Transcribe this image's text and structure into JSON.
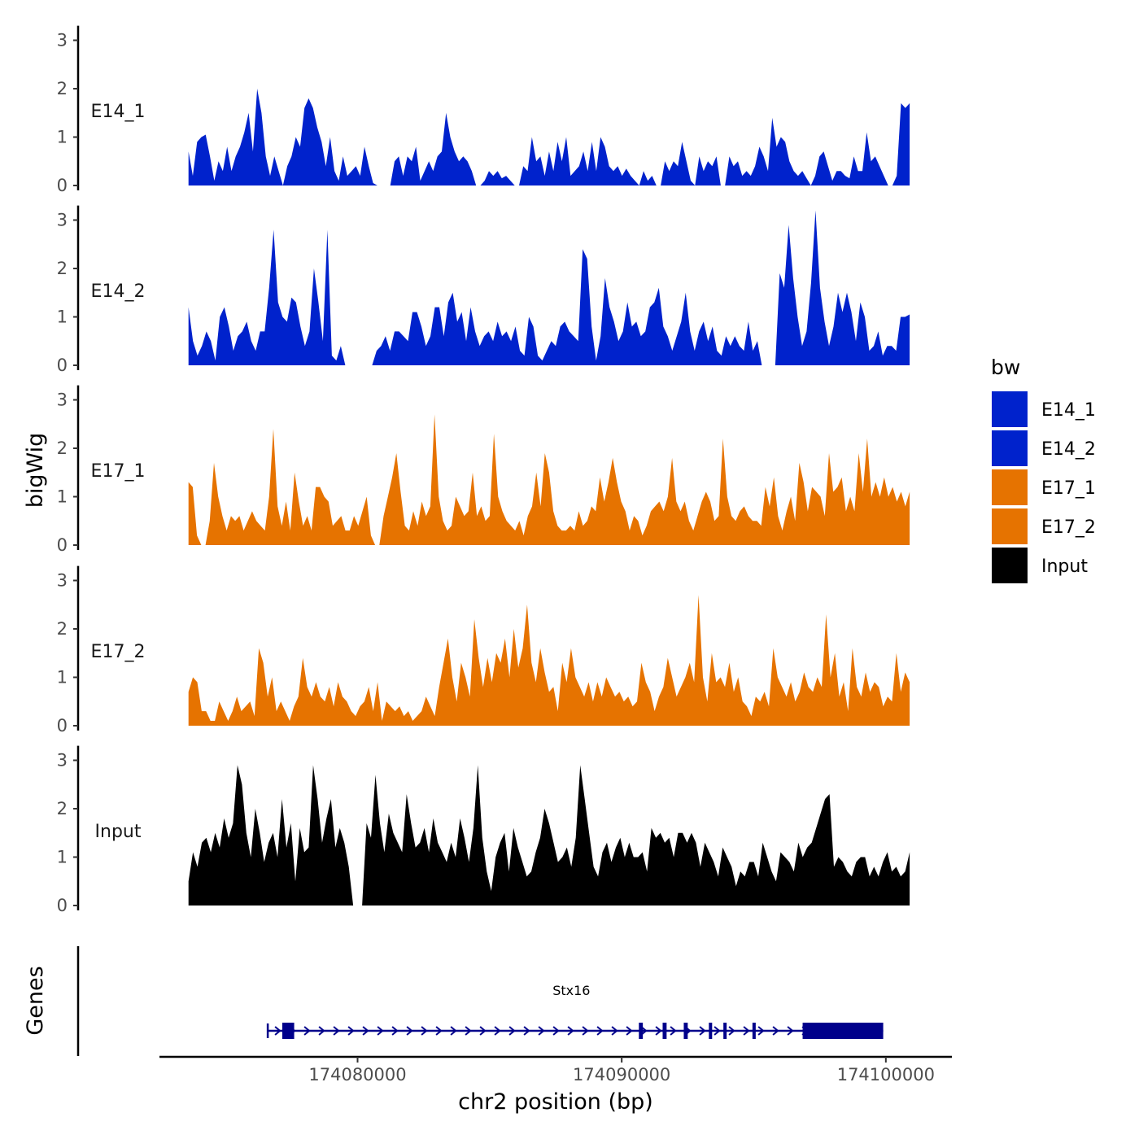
{
  "chart_data": {
    "type": "area",
    "title": "",
    "ylabel": "bigWig",
    "xlabel": "chr2 position (bp)",
    "genes_label": "Genes",
    "xlim": [
      174072500,
      174102500
    ],
    "ylim": [
      0,
      3.2
    ],
    "y_ticks": [
      "0",
      "1",
      "2",
      "3"
    ],
    "x_ticks": [
      {
        "value": 174080000,
        "label": "174080000"
      },
      {
        "value": 174090000,
        "label": "174090000"
      },
      {
        "value": 174100000,
        "label": "174100000"
      }
    ],
    "legend": {
      "title": "bw",
      "entries": [
        {
          "label": "E14_1",
          "color": "#0022CC"
        },
        {
          "label": "E14_2",
          "color": "#0022CC"
        },
        {
          "label": "E17_1",
          "color": "#E67300"
        },
        {
          "label": "E17_2",
          "color": "#E67300"
        },
        {
          "label": "Input",
          "color": "#000000"
        }
      ]
    },
    "x_range_signal": [
      174073600,
      174100900
    ],
    "tracks": [
      {
        "name": "E14_1",
        "color": "#0022CC",
        "values": [
          0.7,
          0.2,
          0.9,
          1.0,
          1.05,
          0.6,
          0.1,
          0.5,
          0.3,
          0.8,
          0.3,
          0.6,
          0.8,
          1.1,
          1.5,
          0.7,
          2.0,
          1.5,
          0.6,
          0.2,
          0.6,
          0.3,
          0,
          0.4,
          0.6,
          1.0,
          0.8,
          1.6,
          1.8,
          1.6,
          1.2,
          0.9,
          0.4,
          1.0,
          0.3,
          0.1,
          0.6,
          0.2,
          0.3,
          0.4,
          0.2,
          0.8,
          0.4,
          0.05,
          0,
          0,
          0,
          0,
          0.5,
          0.6,
          0.2,
          0.6,
          0.5,
          0.8,
          0.1,
          0.3,
          0.5,
          0.3,
          0.6,
          0.7,
          1.5,
          1.0,
          0.7,
          0.5,
          0.6,
          0.5,
          0.3,
          0,
          0,
          0.1,
          0.3,
          0.2,
          0.3,
          0.15,
          0.2,
          0.1,
          0,
          0,
          0.4,
          0.3,
          1.0,
          0.5,
          0.6,
          0.2,
          0.7,
          0.3,
          0.9,
          0.5,
          1.0,
          0.2,
          0.3,
          0.4,
          0.7,
          0.3,
          0.9,
          0.3,
          1.0,
          0.8,
          0.4,
          0.3,
          0.4,
          0.2,
          0.35,
          0.2,
          0.1,
          0,
          0.3,
          0.1,
          0.2,
          0,
          0,
          0.5,
          0.3,
          0.5,
          0.4,
          0.9,
          0.5,
          0.1,
          0,
          0.6,
          0.3,
          0.5,
          0.4,
          0.6,
          0,
          0,
          0.6,
          0.4,
          0.5,
          0.2,
          0.3,
          0.2,
          0.4,
          0.8,
          0.6,
          0.3,
          1.4,
          0.8,
          1.0,
          0.9,
          0.5,
          0.3,
          0.2,
          0.3,
          0.15,
          0,
          0.2,
          0.6,
          0.7,
          0.4,
          0.1,
          0.3,
          0.3,
          0.2,
          0.15,
          0.6,
          0.3,
          0.3,
          1.1,
          0.5,
          0.6,
          0.4,
          0.2,
          0,
          0,
          0.2,
          1.7,
          1.6,
          1.7
        ]
      },
      {
        "name": "E14_2",
        "color": "#0022CC",
        "values": [
          1.2,
          0.5,
          0.2,
          0.4,
          0.7,
          0.5,
          0.1,
          1.0,
          1.2,
          0.8,
          0.3,
          0.6,
          0.7,
          0.9,
          0.5,
          0.3,
          0.7,
          0.7,
          1.6,
          2.8,
          1.3,
          1.0,
          0.9,
          1.4,
          1.3,
          0.8,
          0.4,
          0.7,
          2.0,
          1.3,
          0.5,
          2.8,
          0.2,
          0.1,
          0.4,
          0,
          0,
          0,
          0,
          0,
          0,
          0,
          0.3,
          0.4,
          0.6,
          0.3,
          0.7,
          0.7,
          0.6,
          0.5,
          1.1,
          1.1,
          0.8,
          0.4,
          0.6,
          1.2,
          1.2,
          0.6,
          1.3,
          1.5,
          0.9,
          1.1,
          0.5,
          1.2,
          0.7,
          0.4,
          0.6,
          0.7,
          0.5,
          0.9,
          0.6,
          0.7,
          0.5,
          0.8,
          0.3,
          0.2,
          1.0,
          0.8,
          0.2,
          0.1,
          0.3,
          0.5,
          0.4,
          0.8,
          0.9,
          0.7,
          0.6,
          0.5,
          2.4,
          2.2,
          0.8,
          0.1,
          0.6,
          1.8,
          1.2,
          0.9,
          0.5,
          0.7,
          1.3,
          0.8,
          0.9,
          0.6,
          0.7,
          1.2,
          1.3,
          1.6,
          0.8,
          0.6,
          0.3,
          0.6,
          0.9,
          1.5,
          0.7,
          0.3,
          0.7,
          0.9,
          0.5,
          0.8,
          0.3,
          0.2,
          0.6,
          0.4,
          0.6,
          0.4,
          0.3,
          0.9,
          0.3,
          0.5,
          0,
          0,
          0,
          0,
          1.9,
          1.6,
          2.9,
          1.8,
          1.0,
          0.4,
          0.7,
          1.7,
          3.2,
          1.6,
          0.9,
          0.4,
          0.8,
          1.5,
          1.1,
          1.5,
          1.1,
          0.5,
          1.3,
          1.0,
          0.3,
          0.4,
          0.7,
          0.2,
          0.4,
          0.4,
          0.3,
          1.0,
          1.0,
          1.05
        ]
      },
      {
        "name": "E17_1",
        "color": "#E67300",
        "values": [
          1.3,
          1.2,
          0.2,
          0,
          0,
          0.5,
          1.7,
          1.0,
          0.6,
          0.3,
          0.6,
          0.5,
          0.6,
          0.3,
          0.5,
          0.7,
          0.5,
          0.4,
          0.3,
          1.0,
          2.4,
          0.8,
          0.4,
          0.9,
          0.3,
          1.5,
          0.9,
          0.4,
          0.6,
          0.3,
          1.2,
          1.2,
          1.0,
          0.9,
          0.4,
          0.5,
          0.6,
          0.3,
          0.3,
          0.6,
          0.4,
          0.7,
          1.0,
          0.2,
          0,
          0,
          0.6,
          1.0,
          1.4,
          1.9,
          1.1,
          0.4,
          0.3,
          0.7,
          0.4,
          0.9,
          0.6,
          0.8,
          2.7,
          1.0,
          0.5,
          0.3,
          0.4,
          1.0,
          0.8,
          0.6,
          0.7,
          1.5,
          0.6,
          0.8,
          0.5,
          0.6,
          2.3,
          1.0,
          0.7,
          0.5,
          0.4,
          0.3,
          0.5,
          0.2,
          0.6,
          0.8,
          1.5,
          0.8,
          1.9,
          1.5,
          0.7,
          0.4,
          0.3,
          0.3,
          0.4,
          0.3,
          0.7,
          0.4,
          0.5,
          0.8,
          0.7,
          1.4,
          0.9,
          1.3,
          1.8,
          1.3,
          0.9,
          0.7,
          0.3,
          0.6,
          0.5,
          0.2,
          0.4,
          0.7,
          0.8,
          0.9,
          0.7,
          1.0,
          1.8,
          0.9,
          0.7,
          0.9,
          0.5,
          0.3,
          0.6,
          0.9,
          1.1,
          0.9,
          0.5,
          0.6,
          2.2,
          1.0,
          0.6,
          0.5,
          0.7,
          0.8,
          0.6,
          0.5,
          0.5,
          0.4,
          1.2,
          0.8,
          1.4,
          0.6,
          0.3,
          0.7,
          1.0,
          0.5,
          1.7,
          1.3,
          0.7,
          1.2,
          1.1,
          1.0,
          0.6,
          1.9,
          1.1,
          1.2,
          1.4,
          0.7,
          1.0,
          0.7,
          1.9,
          1.1,
          2.2,
          1.0,
          1.3,
          1.0,
          1.4,
          1.0,
          1.2,
          0.9,
          1.1,
          0.8,
          1.1
        ]
      },
      {
        "name": "E17_2",
        "color": "#E67300",
        "values": [
          0.7,
          1.0,
          0.9,
          0.3,
          0.3,
          0.1,
          0.1,
          0.5,
          0.3,
          0.1,
          0.3,
          0.6,
          0.3,
          0.4,
          0.5,
          0.2,
          1.6,
          1.3,
          0.6,
          1.0,
          0.3,
          0.5,
          0.3,
          0.1,
          0.4,
          0.6,
          1.4,
          0.8,
          0.6,
          0.9,
          0.6,
          0.5,
          0.8,
          0.4,
          0.9,
          0.6,
          0.5,
          0.3,
          0.2,
          0.4,
          0.5,
          0.8,
          0.3,
          0.9,
          0.1,
          0.5,
          0.4,
          0.3,
          0.4,
          0.2,
          0.3,
          0.1,
          0.2,
          0.3,
          0.6,
          0.4,
          0.2,
          0.8,
          1.3,
          1.8,
          1.0,
          0.5,
          1.3,
          1.0,
          0.6,
          2.2,
          1.4,
          0.8,
          1.4,
          0.9,
          1.5,
          1.3,
          1.8,
          1.0,
          2.0,
          1.2,
          1.6,
          2.5,
          1.3,
          0.9,
          1.6,
          1.1,
          0.7,
          0.8,
          0.3,
          1.3,
          0.9,
          1.6,
          1.0,
          0.8,
          0.6,
          0.9,
          0.5,
          0.9,
          0.6,
          1.0,
          0.8,
          0.6,
          0.7,
          0.5,
          0.6,
          0.4,
          0.5,
          1.3,
          0.9,
          0.7,
          0.3,
          0.6,
          0.8,
          1.4,
          1.0,
          0.6,
          0.8,
          1.0,
          1.3,
          0.9,
          2.7,
          1.0,
          0.5,
          1.5,
          0.9,
          1.0,
          0.8,
          1.3,
          0.7,
          1.0,
          0.5,
          0.4,
          0.2,
          0.6,
          0.5,
          0.7,
          0.4,
          1.6,
          1.0,
          0.8,
          0.6,
          0.9,
          0.5,
          0.7,
          1.1,
          0.8,
          0.7,
          1.0,
          0.8,
          2.3,
          1.0,
          1.5,
          0.6,
          0.9,
          0.3,
          1.6,
          0.8,
          0.6,
          1.1,
          0.7,
          0.9,
          0.8,
          0.4,
          0.6,
          0.5,
          1.5,
          0.7,
          1.1,
          0.9
        ]
      },
      {
        "name": "Input",
        "color": "#000000",
        "values": [
          0.5,
          1.1,
          0.8,
          1.3,
          1.4,
          1.1,
          1.5,
          1.2,
          1.8,
          1.4,
          1.7,
          2.9,
          2.5,
          1.5,
          1.0,
          2.0,
          1.5,
          0.9,
          1.3,
          1.5,
          1.0,
          2.2,
          1.2,
          1.7,
          0.5,
          1.6,
          1.1,
          1.2,
          2.9,
          2.2,
          1.3,
          1.8,
          2.2,
          1.2,
          1.6,
          1.3,
          0.8,
          0,
          0,
          0,
          1.7,
          1.4,
          2.7,
          1.7,
          1.1,
          1.9,
          1.5,
          1.3,
          1.1,
          2.3,
          1.7,
          1.2,
          1.3,
          1.6,
          1.1,
          1.8,
          1.3,
          1.1,
          0.9,
          1.3,
          1.0,
          1.8,
          1.4,
          0.9,
          1.6,
          2.9,
          1.4,
          0.7,
          0.3,
          1.0,
          1.3,
          1.5,
          0.7,
          1.6,
          1.2,
          0.9,
          0.6,
          0.7,
          1.1,
          1.4,
          2.0,
          1.7,
          1.3,
          0.9,
          1.0,
          1.2,
          0.8,
          1.4,
          2.9,
          2.2,
          1.5,
          0.8,
          0.6,
          1.1,
          1.3,
          0.9,
          1.2,
          1.4,
          1.0,
          1.3,
          1.0,
          1.0,
          1.1,
          0.7,
          1.6,
          1.4,
          1.5,
          1.3,
          1.4,
          1.0,
          1.5,
          1.5,
          1.3,
          1.5,
          1.3,
          0.8,
          1.3,
          1.1,
          0.9,
          0.6,
          1.2,
          1.0,
          0.8,
          0.4,
          0.7,
          0.6,
          0.9,
          0.9,
          0.6,
          1.3,
          1.0,
          0.7,
          0.5,
          1.1,
          1.0,
          0.9,
          0.7,
          1.3,
          1.0,
          1.2,
          1.3,
          1.6,
          1.9,
          2.2,
          2.3,
          0.8,
          1.0,
          0.9,
          0.7,
          0.6,
          0.9,
          1.0,
          1.0,
          0.6,
          0.8,
          0.6,
          0.9,
          1.1,
          0.7,
          0.8,
          0.6,
          0.7,
          1.1
        ]
      }
    ],
    "genes": [
      {
        "name": "Stx16",
        "strand": "+",
        "start": 174076600,
        "end": 174099900,
        "color": "#00008B",
        "exons": [
          [
            174077150,
            174077600
          ],
          [
            174090650,
            174090800
          ],
          [
            174091550,
            174091700
          ],
          [
            174092350,
            174092500
          ],
          [
            174093300,
            174093400
          ],
          [
            174093850,
            174093950
          ],
          [
            174094950,
            174095000
          ],
          [
            174096850,
            174099900
          ]
        ]
      }
    ]
  }
}
